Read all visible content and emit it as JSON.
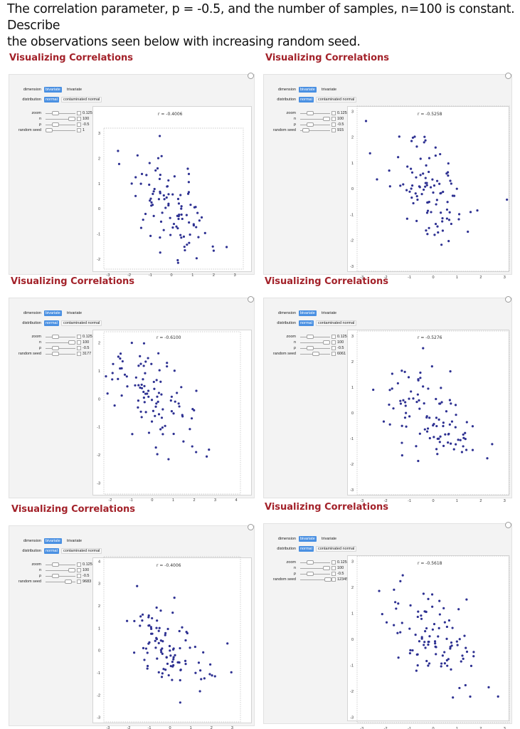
{
  "question": "The correlation parameter, p = -0.5, and the number of samples, n=100 is constant. Describe\nthe observations seen below with increasing random seed.",
  "controls": {
    "dimension_label": "dimension",
    "dimension_options": [
      "bivariate",
      "trivariate"
    ],
    "distribution_label": "distribution",
    "distribution_options": [
      "normal",
      "contaminated normal"
    ],
    "zoom_label": "zoom",
    "n_label": "n",
    "rho_label": "ρ",
    "seed_label": "random seed",
    "zoom_value": "0.125",
    "n_value": "100",
    "rho_value": "-0.5"
  },
  "panels": [
    {
      "title": "Visualizing Correlations",
      "seed": "1",
      "seed_fraction": 0.0,
      "r_label": "r = -0.4006"
    },
    {
      "title": "Visualizing Correlations",
      "seed": "915",
      "seed_fraction": 0.08,
      "r_label": "r = -0.5258"
    },
    {
      "title": "Visualizing Correlations",
      "seed": "3177",
      "seed_fraction": 0.26,
      "r_label": "r = -0.6100"
    },
    {
      "title": "Visualizing Correlations",
      "seed": "6061",
      "seed_fraction": 0.5,
      "r_label": "r = -0.5276"
    },
    {
      "title": "Visualizing Correlations",
      "seed": "9683",
      "seed_fraction": 0.78,
      "r_label": "r = -0.4006"
    },
    {
      "title": "Visualizing Correlations",
      "seed": "12345",
      "seed_fraction": 1.0,
      "r_label": "r = -0.5618"
    }
  ],
  "chart_data": [
    {
      "type": "scatter",
      "x_ticks": [
        "-3",
        "-2",
        "-1",
        "0",
        "1",
        "2",
        "3"
      ],
      "y_ticks": [
        "-2",
        "-1",
        "0",
        "1",
        "2",
        "3"
      ],
      "xlim": [
        -3.2,
        3.4
      ],
      "ylim": [
        -2.4,
        3.2
      ],
      "point_color": "#2e3192"
    },
    {
      "type": "scatter",
      "x_ticks": [
        "-3",
        "-2",
        "-1",
        "0",
        "1",
        "2",
        "3"
      ],
      "y_ticks": [
        "-3",
        "-2",
        "-1",
        "0",
        "1",
        "2",
        "3"
      ],
      "xlim": [
        -3.2,
        3.2
      ],
      "ylim": [
        -3.2,
        3.2
      ],
      "point_color": "#2e3192"
    },
    {
      "type": "scatter",
      "x_ticks": [
        "-2",
        "-1",
        "0",
        "1",
        "2",
        "3",
        "4"
      ],
      "y_ticks": [
        "-3",
        "-2",
        "-1",
        "0",
        "1",
        "2"
      ],
      "xlim": [
        -2.3,
        4.2
      ],
      "ylim": [
        -3.4,
        2.4
      ],
      "point_color": "#2e3192"
    },
    {
      "type": "scatter",
      "x_ticks": [
        "-3",
        "-2",
        "-1",
        "0",
        "1",
        "2",
        "3"
      ],
      "y_ticks": [
        "-3",
        "-2",
        "-1",
        "0",
        "1",
        "2",
        "3"
      ],
      "xlim": [
        -3.2,
        3.2
      ],
      "ylim": [
        -3.2,
        3.2
      ],
      "point_color": "#2e3192"
    },
    {
      "type": "scatter",
      "x_ticks": [
        "-3",
        "-2",
        "-1",
        "0",
        "1",
        "2",
        "3"
      ],
      "y_ticks": [
        "-3",
        "-2",
        "-1",
        "0",
        "1",
        "2",
        "3",
        "4"
      ],
      "xlim": [
        -3.2,
        3.4
      ],
      "ylim": [
        -3.2,
        4.2
      ],
      "point_color": "#2e3192"
    },
    {
      "type": "scatter",
      "x_ticks": [
        "-3",
        "-2",
        "-1",
        "0",
        "1",
        "2",
        "3"
      ],
      "y_ticks": [
        "-3",
        "-2",
        "-1",
        "0",
        "1",
        "2",
        "3"
      ],
      "xlim": [
        -3.2,
        3.2
      ],
      "ylim": [
        -3.2,
        3.2
      ],
      "point_color": "#2e3192"
    }
  ]
}
